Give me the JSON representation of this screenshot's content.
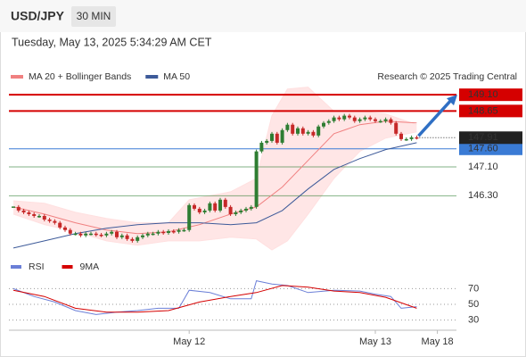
{
  "header": {
    "symbol": "USD/JPY",
    "interval": "30 MIN",
    "timestamp": "Tuesday, May 13, 2025 5:34:29 AM CET"
  },
  "chart_data": {
    "type": "candlestick",
    "source": "Research © 2025 Trading Central",
    "categories": [
      null,
      null,
      null,
      null,
      null,
      null,
      null,
      null,
      null,
      null,
      null,
      null,
      null,
      null,
      null,
      null,
      null,
      null,
      null,
      null,
      null,
      null,
      null,
      null,
      null,
      null,
      null,
      null,
      null,
      null,
      null,
      null,
      null,
      null,
      "May 12",
      null,
      null,
      null,
      null,
      null,
      null,
      null,
      null,
      null,
      null,
      null,
      null,
      null,
      null,
      null,
      null,
      null,
      null,
      null,
      null,
      null,
      null,
      null,
      null,
      null,
      null,
      null,
      null,
      null,
      null,
      null,
      null,
      null,
      null,
      null,
      "May 13",
      null,
      null,
      null,
      null,
      null,
      null,
      null,
      null,
      null,
      null,
      null,
      "May 18"
    ],
    "close": [
      145.99,
      145.89,
      145.84,
      145.79,
      145.74,
      145.74,
      145.64,
      145.6,
      145.55,
      145.42,
      145.35,
      145.25,
      145.25,
      145.2,
      145.25,
      145.25,
      145.22,
      145.2,
      145.25,
      145.3,
      145.15,
      145.2,
      145.1,
      145.05,
      145.15,
      145.2,
      145.25,
      145.25,
      145.3,
      145.27,
      145.32,
      145.3,
      145.35,
      145.35,
      146.04,
      145.94,
      145.84,
      145.89,
      146.09,
      145.89,
      146.19,
      145.99,
      145.79,
      145.84,
      145.89,
      145.94,
      145.99,
      147.53,
      147.77,
      147.82,
      148.02,
      147.77,
      148.12,
      148.27,
      148.02,
      148.17,
      148.02,
      148.07,
      147.97,
      148.22,
      148.32,
      148.37,
      148.47,
      148.42,
      148.52,
      148.47,
      148.37,
      148.42,
      148.47,
      148.42,
      148.37,
      148.37,
      148.42,
      148.32,
      148.02,
      147.87,
      147.87,
      147.92,
      147.91,
      null,
      null,
      null,
      null
    ],
    "up_color": "#2e7d32",
    "down_color": "#c62828",
    "ylim": [
      144.7,
      149.5
    ],
    "series": [
      {
        "name": "MA 20 + Bollinger Bands",
        "color": "#f08080",
        "x": [
          0,
          6,
          12,
          18,
          24,
          30,
          36,
          42,
          47,
          52,
          57,
          62,
          67,
          72,
          78
        ],
        "values": [
          145.99,
          145.79,
          145.55,
          145.35,
          145.25,
          145.3,
          145.5,
          145.79,
          145.99,
          146.54,
          147.28,
          148.02,
          148.27,
          148.37,
          148.32
        ]
      },
      {
        "name": "MA 50",
        "color": "#3d5a99",
        "x": [
          0,
          6,
          12,
          18,
          24,
          30,
          36,
          42,
          47,
          52,
          57,
          62,
          67,
          72,
          78
        ],
        "values": [
          144.85,
          145.05,
          145.25,
          145.4,
          145.5,
          145.55,
          145.55,
          145.5,
          145.55,
          145.89,
          146.49,
          147.03,
          147.33,
          147.58,
          147.77
        ]
      }
    ],
    "bands": {
      "color": "#ffe0e0",
      "upper": {
        "x": [
          0,
          6,
          12,
          18,
          24,
          30,
          34,
          42,
          47,
          50,
          53,
          57,
          62,
          67,
          72,
          78
        ],
        "values": [
          146.16,
          146.09,
          145.84,
          145.67,
          145.55,
          145.55,
          146.19,
          146.41,
          146.78,
          148.52,
          149.26,
          149.31,
          148.64,
          148.64,
          148.57,
          148.27
        ]
      },
      "lower": {
        "x": [
          0,
          6,
          12,
          18,
          24,
          30,
          36,
          42,
          47,
          50,
          53,
          57,
          62,
          67,
          72,
          78
        ],
        "values": [
          145.79,
          145.5,
          145.3,
          145.05,
          144.93,
          145.05,
          145.05,
          145.15,
          145.1,
          144.8,
          145.05,
          145.79,
          146.78,
          147.53,
          147.9,
          148.07
        ]
      }
    },
    "levels": [
      {
        "value": 149.1,
        "label": "149.10",
        "color": "#d50000",
        "boxed": true
      },
      {
        "value": 148.65,
        "label": "148.65",
        "color": "#d50000",
        "boxed": true
      },
      {
        "value": 147.6,
        "label": "147.60",
        "color": "#3a7bd5",
        "boxed": true
      },
      {
        "value": 147.1,
        "label": "147.10",
        "color": "#2e7d32",
        "boxed": false
      },
      {
        "value": 146.3,
        "label": "146.30",
        "color": "#2e7d32",
        "boxed": false
      }
    ],
    "indicator": {
      "ylim": [
        17,
        83
      ],
      "yticks": [
        30,
        50,
        70
      ],
      "series": [
        {
          "name": "RSI",
          "color": "#6b7fd7",
          "x": [
            0,
            4,
            8,
            12,
            16,
            20,
            24,
            28,
            32,
            34,
            38,
            42,
            46,
            47,
            50,
            53,
            57,
            62,
            67,
            70,
            73,
            75,
            78
          ],
          "values": [
            70,
            60,
            53,
            42,
            37,
            40,
            42,
            45,
            45,
            68,
            65,
            57,
            57,
            80,
            76,
            74,
            65,
            68,
            67,
            63,
            60,
            45,
            47
          ]
        },
        {
          "name": "9MA",
          "color": "#d50000",
          "x": [
            0,
            6,
            12,
            18,
            24,
            30,
            36,
            42,
            47,
            52,
            57,
            62,
            67,
            72,
            78
          ],
          "values": [
            68,
            60,
            45,
            40,
            40,
            42,
            53,
            60,
            65,
            74,
            72,
            67,
            65,
            59,
            45
          ]
        }
      ]
    }
  }
}
